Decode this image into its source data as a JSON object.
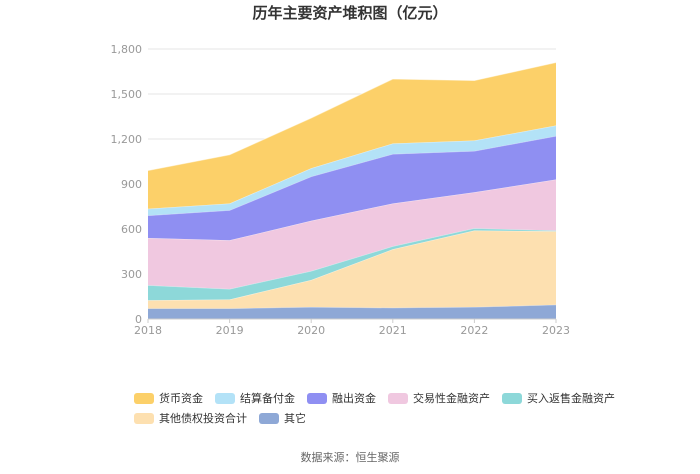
{
  "chart_data": {
    "type": "area",
    "stacked": true,
    "title": "历年主要资产堆积图（亿元）",
    "x": [
      "2018",
      "2019",
      "2020",
      "2021",
      "2022",
      "2023"
    ],
    "y_ticks": [
      "0",
      "300",
      "600",
      "900",
      "1,200",
      "1,500",
      "1,800"
    ],
    "ylim": [
      0,
      1800
    ],
    "grid": true,
    "legend_position": "bottom",
    "series": [
      {
        "name": "其它",
        "color": "#8ea8d6",
        "values": [
          70,
          70,
          80,
          75,
          80,
          95
        ]
      },
      {
        "name": "其他债权投资合计",
        "color": "#fde0b0",
        "values": [
          55,
          60,
          180,
          390,
          510,
          490
        ]
      },
      {
        "name": "买入返售金融资产",
        "color": "#8dd8d9",
        "values": [
          100,
          70,
          60,
          20,
          15,
          5
        ]
      },
      {
        "name": "交易性金融资产",
        "color": "#f0c8e0",
        "values": [
          315,
          325,
          335,
          285,
          240,
          340
        ]
      },
      {
        "name": "融出资金",
        "color": "#8f8ff2",
        "values": [
          150,
          200,
          295,
          330,
          275,
          290
        ]
      },
      {
        "name": "结算备付金",
        "color": "#b3e2f7",
        "values": [
          45,
          45,
          55,
          70,
          70,
          70
        ]
      },
      {
        "name": "货币资金",
        "color": "#fcd069",
        "values": [
          255,
          325,
          335,
          430,
          400,
          420
        ]
      }
    ],
    "legend_order": [
      "货币资金",
      "结算备付金",
      "融出资金",
      "交易性金融资产",
      "买入返售金融资产",
      "其他债权投资合计",
      "其它"
    ],
    "source": "数据来源：恒生聚源"
  }
}
